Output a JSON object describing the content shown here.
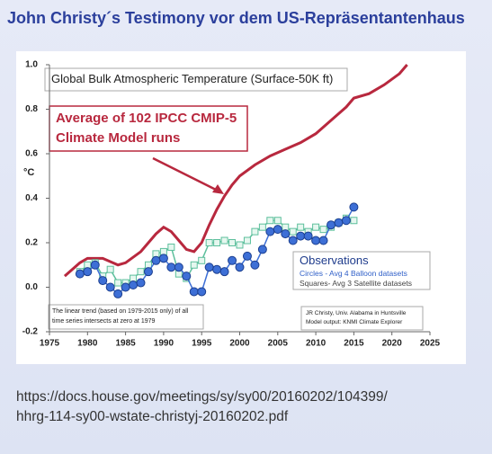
{
  "slide_title": "John Christy´s Testimony vor dem US-Repräsentantenhaus",
  "chart_data": {
    "type": "line",
    "title": "Global Bulk Atmospheric Temperature (Surface-50K ft)",
    "y_label": "°C",
    "xlim": [
      1975,
      2025
    ],
    "xticks": [
      1975,
      1980,
      1985,
      1990,
      1995,
      2000,
      2005,
      2010,
      2015,
      2020,
      2025
    ],
    "ylim": [
      -0.2,
      1.0
    ],
    "yticks": [
      -0.2,
      {
        "value": 0,
        "label": "0.0"
      },
      0.2,
      0.4,
      0.6,
      0.8,
      {
        "value": 1,
        "label": "1.0"
      }
    ],
    "legend_title": "Observations",
    "series": [
      {
        "name": "Average of 102 IPCC CMIP-5 Climate Model runs",
        "color": "#b8283e",
        "marker": "none",
        "x": [
          1977,
          1979,
          1980,
          1982,
          1984,
          1985,
          1987,
          1989,
          1990,
          1991,
          1992,
          1993,
          1994,
          1995,
          1996,
          1997,
          1998,
          1999,
          2000,
          2002,
          2004,
          2006,
          2008,
          2010,
          2012,
          2014,
          2015,
          2017,
          2019,
          2021,
          2022
        ],
        "values": [
          0.05,
          0.11,
          0.13,
          0.13,
          0.1,
          0.11,
          0.16,
          0.24,
          0.27,
          0.25,
          0.21,
          0.17,
          0.16,
          0.2,
          0.28,
          0.35,
          0.41,
          0.46,
          0.5,
          0.55,
          0.59,
          0.62,
          0.65,
          0.69,
          0.75,
          0.81,
          0.85,
          0.87,
          0.91,
          0.96,
          1.0
        ]
      },
      {
        "name": "Squares- Avg 3 Satellite datasets",
        "color": "#5cbf9c",
        "marker": "square",
        "x": [
          1979,
          1980,
          1981,
          1982,
          1983,
          1984,
          1985,
          1986,
          1987,
          1988,
          1989,
          1990,
          1991,
          1992,
          1993,
          1994,
          1995,
          1996,
          1997,
          1998,
          1999,
          2000,
          2001,
          2002,
          2003,
          2004,
          2005,
          2006,
          2007,
          2008,
          2009,
          2010,
          2011,
          2012,
          2013,
          2014,
          2015
        ],
        "values": [
          0.07,
          0.1,
          0.11,
          0.05,
          0.08,
          0.02,
          0.02,
          0.04,
          0.07,
          0.1,
          0.15,
          0.16,
          0.18,
          0.06,
          0.04,
          0.1,
          0.12,
          0.2,
          0.2,
          0.21,
          0.2,
          0.19,
          0.21,
          0.25,
          0.27,
          0.3,
          0.3,
          0.27,
          0.25,
          0.27,
          0.25,
          0.27,
          0.26,
          0.27,
          0.29,
          0.31,
          0.3
        ]
      },
      {
        "name": "Circles - Avg 4 Balloon datasets",
        "color": "#3d6fd6",
        "marker": "circle",
        "x": [
          1979,
          1980,
          1981,
          1982,
          1983,
          1984,
          1985,
          1986,
          1987,
          1988,
          1989,
          1990,
          1991,
          1992,
          1993,
          1994,
          1995,
          1996,
          1997,
          1998,
          1999,
          2000,
          2001,
          2002,
          2003,
          2004,
          2005,
          2006,
          2007,
          2008,
          2009,
          2010,
          2011,
          2012,
          2013,
          2014,
          2015
        ],
        "values": [
          0.06,
          0.07,
          0.1,
          0.03,
          0.0,
          -0.03,
          0.0,
          0.01,
          0.02,
          0.07,
          0.12,
          0.13,
          0.09,
          0.09,
          0.05,
          -0.02,
          -0.02,
          0.09,
          0.08,
          0.07,
          0.12,
          0.09,
          0.14,
          0.1,
          0.17,
          0.25,
          0.26,
          0.24,
          0.21,
          0.23,
          0.23,
          0.21,
          0.21,
          0.28,
          0.29,
          0.3,
          0.36
        ]
      }
    ],
    "note": "The linear trend (based on 1979-2015 only) of all time series intersects at zero at 1979",
    "credit": [
      "JR Christy, Univ. Alabama in Huntsville",
      "Model output: KNMI Climate Explorer"
    ]
  },
  "source_url": [
    "https://docs.house.gov/meetings/sy/sy00/20160202/104399/",
    "hhrg-114-sy00-wstate-christyj-20160202.pdf"
  ]
}
